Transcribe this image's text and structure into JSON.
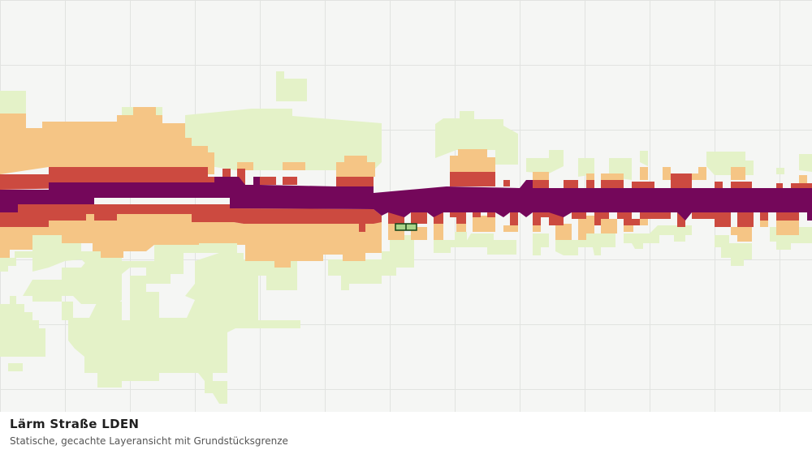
{
  "map": {
    "title": "Lärm Straße LDEN",
    "subtitle": "Statische, gecachte Layeransicht mit Grundstücksgrenze",
    "colors": {
      "background": "#f5f6f4",
      "grid": "#e1e3e0",
      "band_lowest": "#e4f2c8",
      "band_low": "#f5c585",
      "band_high": "#cc4a40",
      "band_highest": "#74075a",
      "parcel_fill": "#a9d48a",
      "parcel_stroke": "#1d4a1d"
    }
  }
}
